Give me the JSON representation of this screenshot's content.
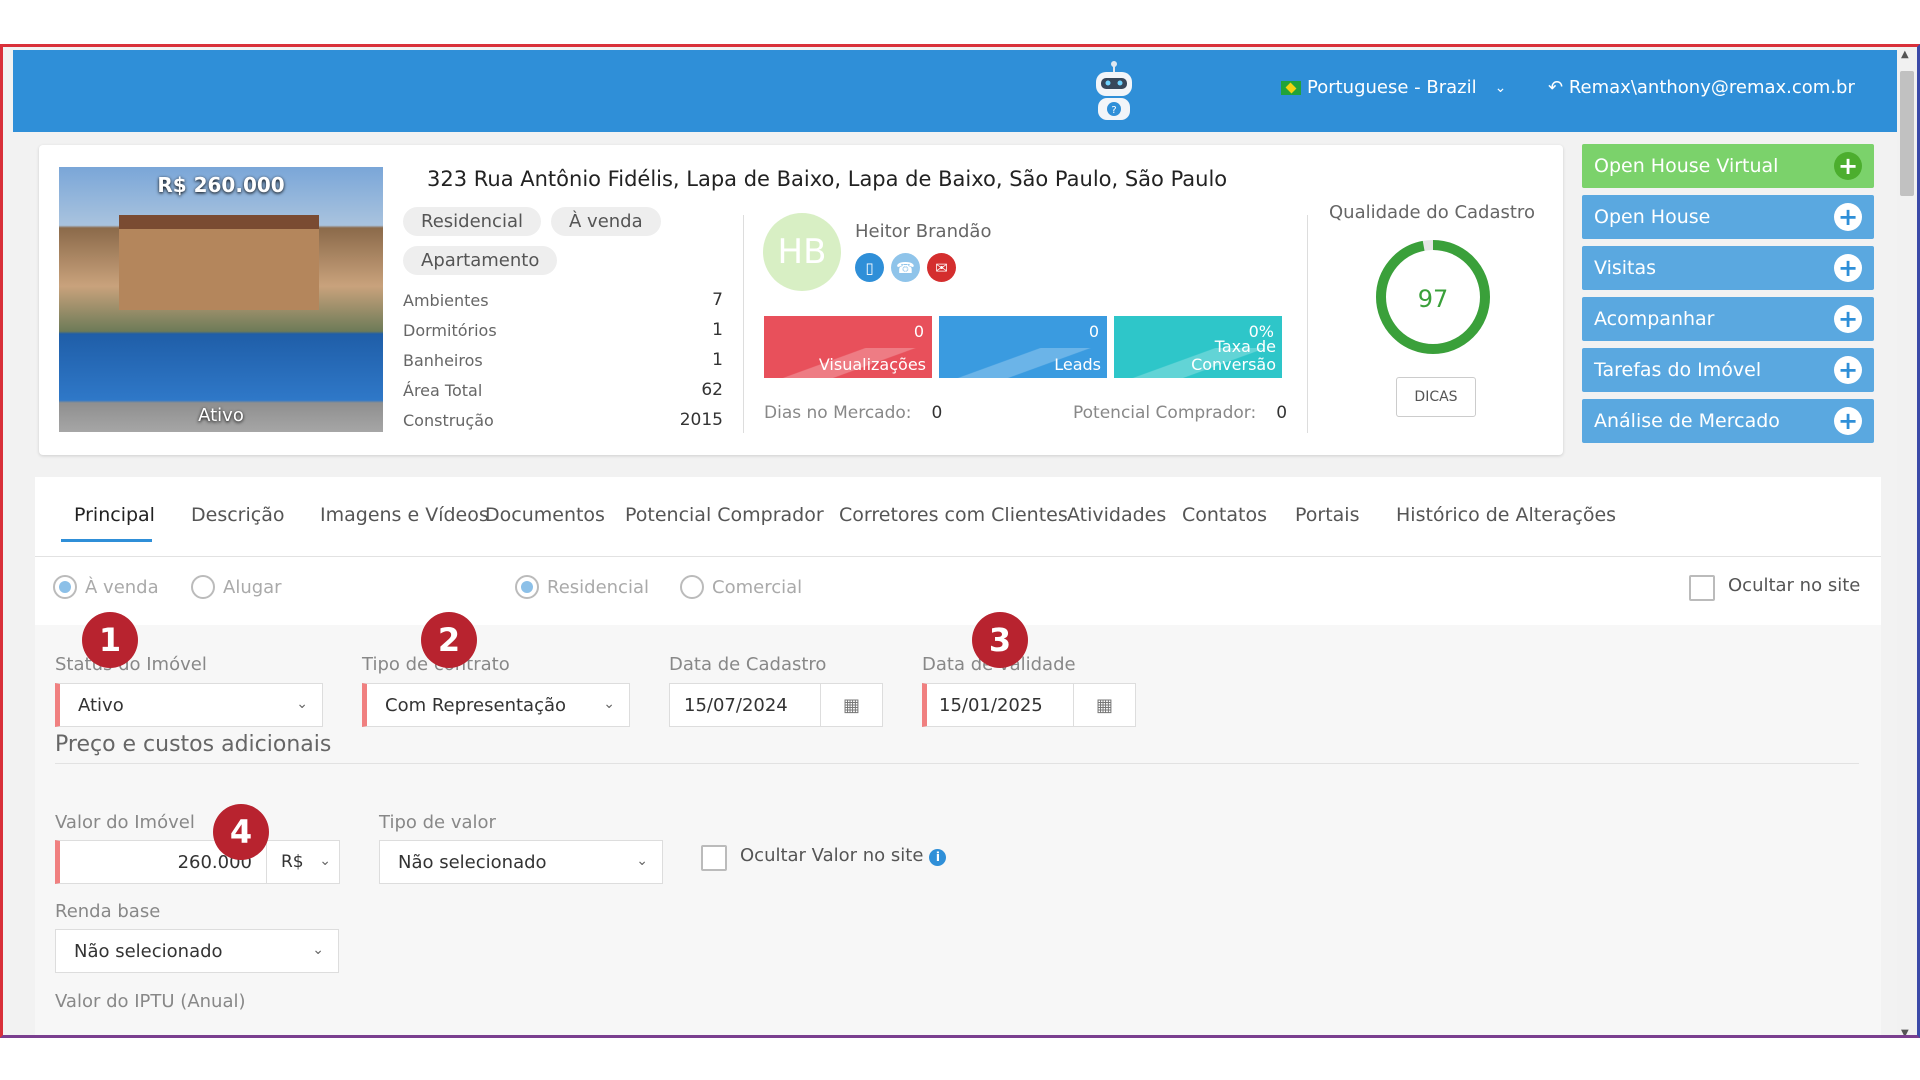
{
  "header": {
    "language": "Portuguese - Brazil",
    "user": "Remax\\anthony@remax.com.br"
  },
  "property": {
    "price": "R$ 260.000",
    "status": "Ativo",
    "address": "323 Rua Antônio Fidélis, Lapa de Baixo, Lapa de Baixo, São Paulo, São Paulo",
    "tags": [
      "Residencial",
      "À venda",
      "Apartamento"
    ],
    "specs": [
      {
        "label": "Ambientes",
        "value": "7"
      },
      {
        "label": "Dormitórios",
        "value": "1"
      },
      {
        "label": "Banheiros",
        "value": "1"
      },
      {
        "label": "Área Total",
        "value": "62"
      },
      {
        "label": "Construção",
        "value": "2015"
      }
    ]
  },
  "agent": {
    "initials": "HB",
    "name": "Heitor Brandão"
  },
  "stats": [
    {
      "value": "0",
      "label": "Visualizações",
      "color": "#e8505b"
    },
    {
      "value": "0",
      "label": "Leads",
      "color": "#3a9be0"
    },
    {
      "value": "0%",
      "label": "Taxa de Conversão",
      "color": "#2ec6c9"
    }
  ],
  "market": {
    "days_label": "Dias no Mercado:",
    "days_value": "0",
    "buyers_label": "Potencial Comprador:",
    "buyers_value": "0"
  },
  "quality": {
    "title": "Qualidade do Cadastro",
    "score": "97",
    "tips_label": "DICAS"
  },
  "actions": [
    {
      "label": "Open House Virtual"
    },
    {
      "label": "Open House"
    },
    {
      "label": "Visitas"
    },
    {
      "label": "Acompanhar"
    },
    {
      "label": "Tarefas do Imóvel"
    },
    {
      "label": "Análise de Mercado"
    }
  ],
  "tabs": [
    "Principal",
    "Descrição",
    "Imagens e Vídeos",
    "Documentos",
    "Potencial Comprador",
    "Corretores com Clientes",
    "Atividades",
    "Contatos",
    "Portais",
    "Histórico de Alterações"
  ],
  "form": {
    "radio_sale": "À venda",
    "radio_rent": "Alugar",
    "radio_residential": "Residencial",
    "radio_commercial": "Comercial",
    "hide_on_site": "Ocultar no site",
    "status_label": "Status do Imóvel",
    "status_value": "Ativo",
    "contract_label": "Tipo de contrato",
    "contract_value": "Com Representação",
    "reg_date_label": "Data de Cadastro",
    "reg_date_value": "15/07/2024",
    "valid_date_label": "Data de validade",
    "valid_date_value": "15/01/2025",
    "section_price": "Preço e custos adicionais",
    "value_label": "Valor do Imóvel",
    "value_amount": "260.000",
    "currency": "R$",
    "value_type_label": "Tipo de valor",
    "value_type_value": "Não selecionado",
    "hide_value": "Ocultar Valor no site",
    "base_income_label": "Renda base",
    "base_income_value": "Não selecionado",
    "iptu_label": "Valor do IPTU (Anual)"
  },
  "markers": [
    "1",
    "2",
    "3",
    "4"
  ]
}
